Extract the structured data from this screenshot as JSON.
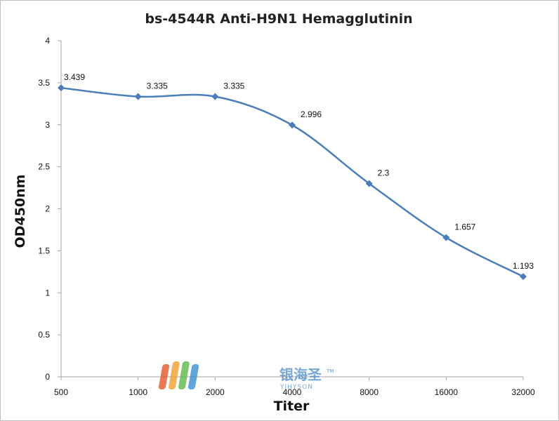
{
  "chart_data": {
    "type": "line",
    "title": "bs-4544R Anti-H9N1 Hemagglutinin",
    "xlabel": "Titer",
    "ylabel": "OD450nm",
    "categories": [
      "500",
      "1000",
      "2000",
      "4000",
      "8000",
      "16000",
      "32000"
    ],
    "series": [
      {
        "values": [
          3.439,
          3.335,
          3.335,
          2.996,
          2.3,
          1.657,
          1.193
        ],
        "color": "#4a7ebb"
      }
    ],
    "data_labels": [
      "3.439",
      "3.335",
      "3.335",
      "2.996",
      "2.3",
      "1.657",
      "1.193"
    ],
    "ylim": [
      0,
      4
    ],
    "yticks": [
      "0",
      "0.5",
      "1",
      "1.5",
      "2",
      "2.5",
      "3",
      "3.5",
      "4"
    ],
    "grid": false,
    "legend": "none",
    "marker": "diamond",
    "smooth": true
  },
  "watermark": {
    "text_cn": "银海圣",
    "text_en": "YIHYSON",
    "trademark": "TM"
  }
}
